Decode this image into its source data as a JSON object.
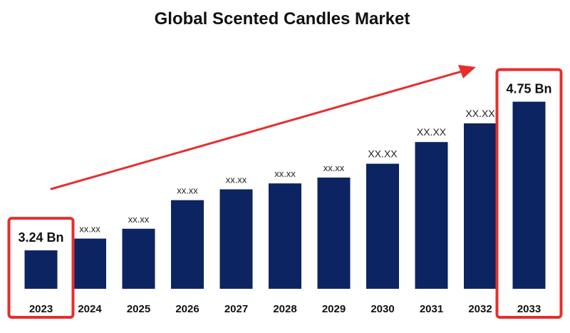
{
  "chart_data": {
    "type": "bar",
    "title": "Global Scented Candles Market",
    "categories": [
      "2023",
      "2024",
      "2025",
      "2026",
      "2027",
      "2028",
      "2029",
      "2030",
      "2031",
      "2032",
      "2033"
    ],
    "series": [
      {
        "values": [
          3.24,
          3.36,
          3.46,
          3.75,
          3.86,
          3.92,
          3.98,
          4.12,
          4.34,
          4.53,
          4.75
        ],
        "data_labels": [
          "3.24 Bn",
          "xx.xx",
          "xx.xx",
          "xx.xx",
          "xx.xx",
          "xx.xx",
          "xx.xx",
          "XX.XX",
          "XX.XX",
          "XX.XX",
          "4.75 Bn"
        ]
      }
    ],
    "highlighted_categories": [
      "2023",
      "2033"
    ],
    "ylim": [
      2.85,
      4.95
    ],
    "grid": false,
    "legend": "none"
  },
  "colors": {
    "bar": "#0c2461",
    "highlight_box": "#e62e2e",
    "arrow": "#e62e2e",
    "text": "#111111",
    "background": "#ffffff"
  }
}
